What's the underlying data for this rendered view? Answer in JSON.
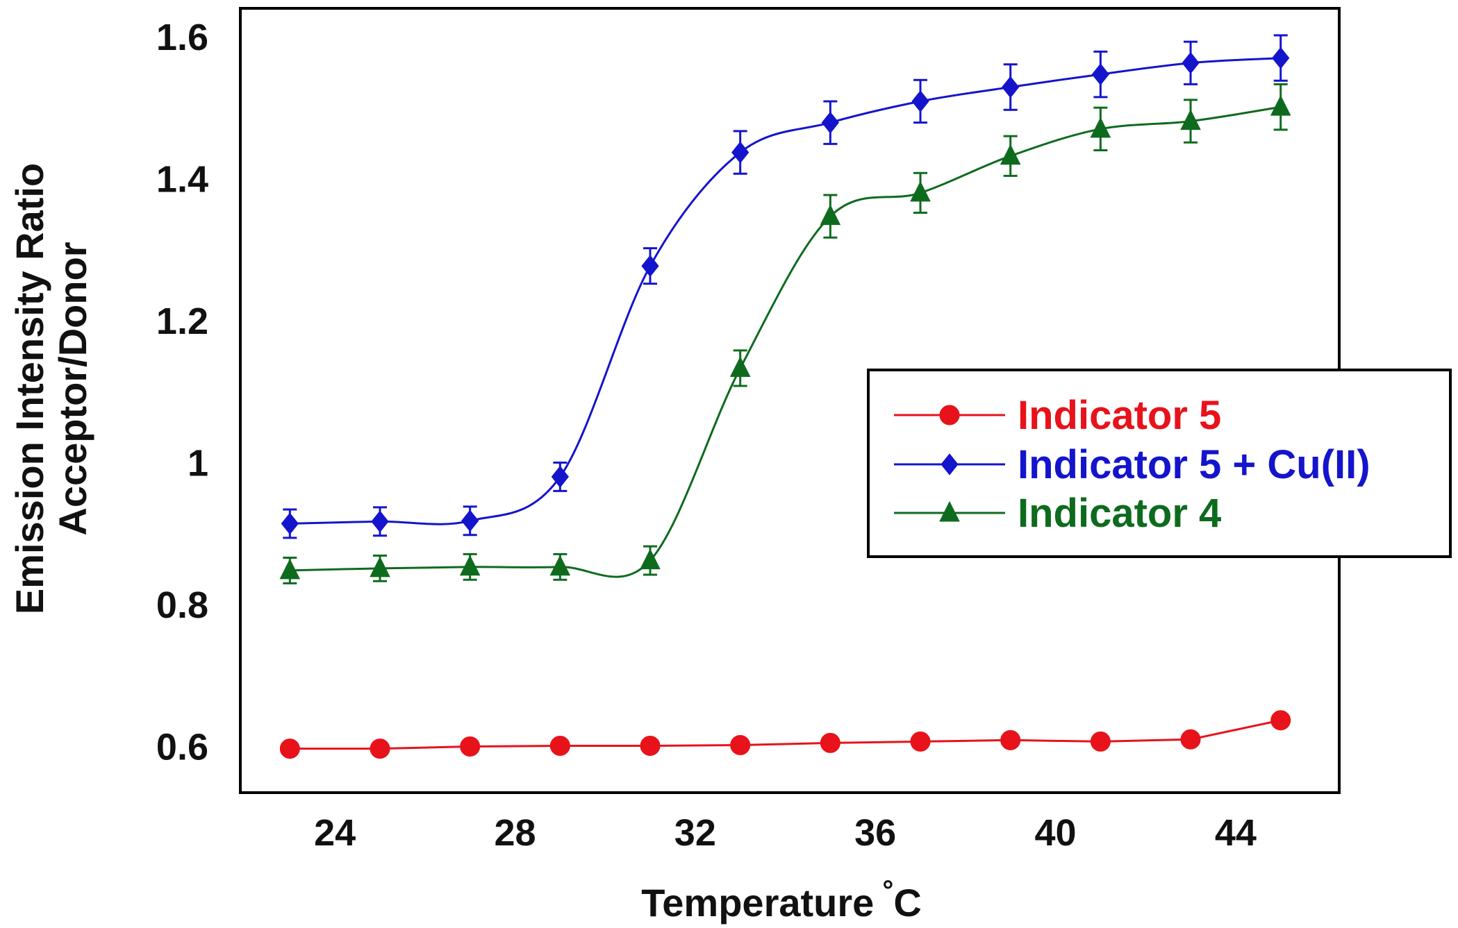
{
  "chart_data": {
    "type": "line",
    "title": "",
    "xlabel": "Temperature",
    "xlabel_unit": "°C",
    "ylabel_lines": [
      "Emission Intensity Ratio",
      "Acceptor/Donor"
    ],
    "xlim": [
      21.9,
      46.3
    ],
    "ylim": [
      0.535,
      1.64
    ],
    "x_ticks": [
      24,
      28,
      32,
      36,
      40,
      44
    ],
    "x_tick_labels": [
      "24",
      "28",
      "32",
      "36",
      "40",
      "44"
    ],
    "y_ticks": [
      0.6,
      0.8,
      1.0,
      1.2,
      1.4,
      1.6
    ],
    "y_tick_labels": [
      "0.6",
      "0.8",
      "1",
      "1.2",
      "1.4",
      "1.6"
    ],
    "grid": false,
    "legend_position": "right",
    "x": [
      23,
      25,
      27,
      29,
      31,
      33,
      35,
      37,
      39,
      41,
      43,
      45
    ],
    "series": [
      {
        "name": "Indicator 5",
        "color": "#e8121b",
        "marker": "circle",
        "values": [
          0.597,
          0.597,
          0.6,
          0.601,
          0.601,
          0.602,
          0.605,
          0.607,
          0.609,
          0.607,
          0.61,
          0.637
        ],
        "errors": [
          0,
          0,
          0,
          0,
          0,
          0,
          0,
          0,
          0,
          0,
          0,
          0
        ]
      },
      {
        "name": "Indicator 5 + Cu(II)",
        "color": "#1414cc",
        "marker": "diamond",
        "values": [
          0.914,
          0.917,
          0.918,
          0.98,
          1.277,
          1.437,
          1.479,
          1.509,
          1.529,
          1.547,
          1.563,
          1.57
        ],
        "errors": [
          0.02,
          0.02,
          0.02,
          0.02,
          0.025,
          0.03,
          0.03,
          0.03,
          0.032,
          0.032,
          0.03,
          0.032
        ]
      },
      {
        "name": "Indicator 4",
        "color": "#0e6b1e",
        "marker": "triangle",
        "values": [
          0.848,
          0.851,
          0.853,
          0.853,
          0.862,
          1.133,
          1.347,
          1.38,
          1.432,
          1.47,
          1.481,
          1.501
        ],
        "errors": [
          0.018,
          0.018,
          0.018,
          0.018,
          0.02,
          0.025,
          0.03,
          0.028,
          0.028,
          0.03,
          0.03,
          0.032
        ]
      }
    ]
  }
}
